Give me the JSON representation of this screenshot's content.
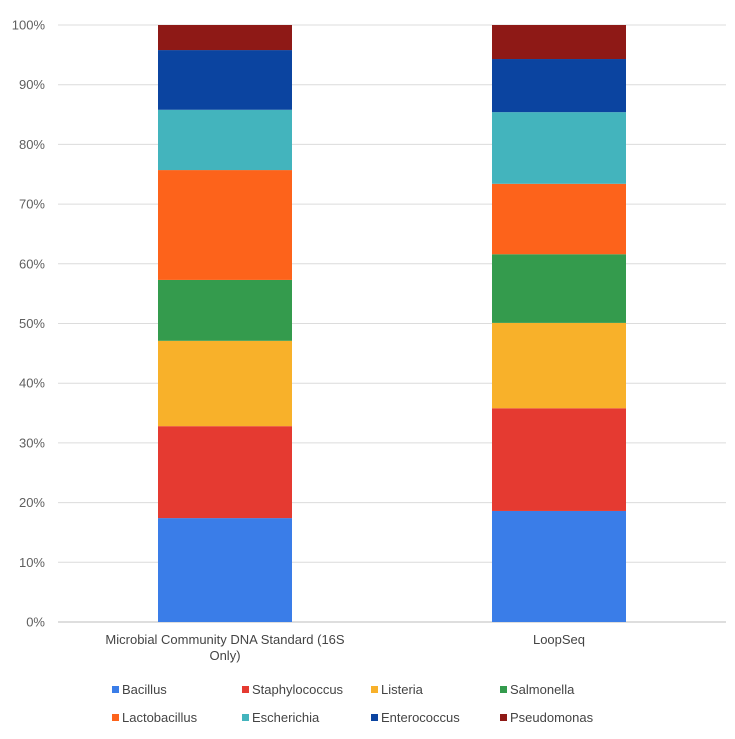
{
  "chart_data": {
    "type": "bar",
    "stacked": "percent",
    "title": "",
    "xlabel": "",
    "ylabel": "",
    "ylim": [
      0,
      100
    ],
    "y_ticks": [
      "0%",
      "10%",
      "20%",
      "30%",
      "40%",
      "50%",
      "60%",
      "70%",
      "80%",
      "90%",
      "100%"
    ],
    "grid": true,
    "legend_position": "bottom",
    "categories": [
      [
        "Microbial Community DNA Standard (16S",
        "Only)"
      ],
      [
        "LoopSeq"
      ]
    ],
    "series": [
      {
        "name": "Bacillus",
        "color": "#3a7de8",
        "values": [
          17.4,
          18.6
        ]
      },
      {
        "name": "Staphylococcus",
        "color": "#e53a31",
        "values": [
          15.4,
          17.2
        ]
      },
      {
        "name": "Listeria",
        "color": "#f8b12a",
        "values": [
          14.3,
          14.3
        ]
      },
      {
        "name": "Salmonella",
        "color": "#349b4d",
        "values": [
          10.2,
          11.5
        ]
      },
      {
        "name": "Lactobacillus",
        "color": "#fd631b",
        "values": [
          18.4,
          11.8
        ]
      },
      {
        "name": "Escherichia",
        "color": "#43b4bd",
        "values": [
          10.1,
          12.0
        ]
      },
      {
        "name": "Enterococcus",
        "color": "#0b44a0",
        "values": [
          10.0,
          8.9
        ]
      },
      {
        "name": "Pseudomonas",
        "color": "#8e1916",
        "values": [
          4.2,
          5.7
        ]
      }
    ]
  }
}
